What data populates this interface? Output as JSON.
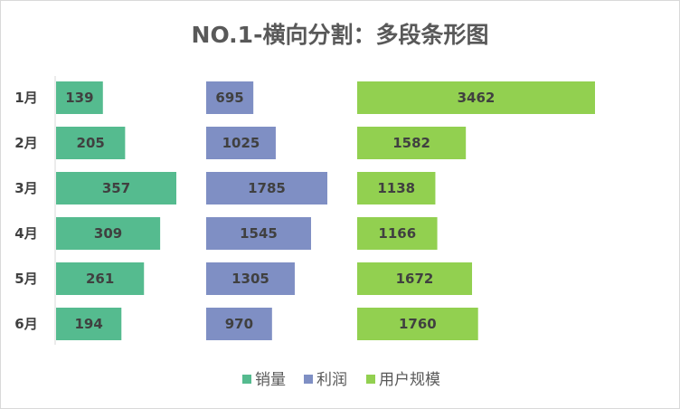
{
  "chart_data": {
    "type": "bar",
    "orientation": "horizontal",
    "layout": "segmented-panels",
    "title": "NO.1-横向分割：多段条形图",
    "categories": [
      "1月",
      "2月",
      "3月",
      "4月",
      "5月",
      "6月"
    ],
    "series": [
      {
        "name": "销量",
        "color": "#55bb8f",
        "values": [
          139,
          205,
          357,
          309,
          261,
          194
        ]
      },
      {
        "name": "利润",
        "color": "#7f8fc4",
        "values": [
          695,
          1025,
          1785,
          1545,
          1305,
          970
        ]
      },
      {
        "name": "用户规模",
        "color": "#92d050",
        "values": [
          3462,
          1582,
          1138,
          1166,
          1672,
          1760
        ]
      }
    ],
    "legend_position": "bottom",
    "grid": false
  }
}
